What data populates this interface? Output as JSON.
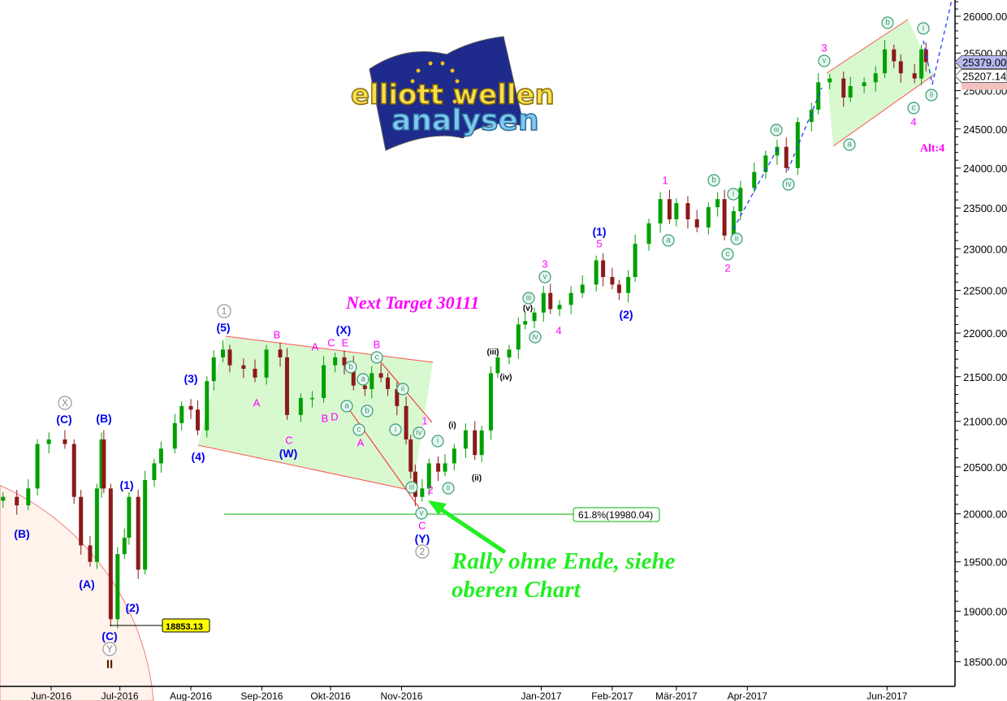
{
  "chart_data": {
    "type": "candlestick",
    "y_scale": "log",
    "ylim": [
      18300,
      26400
    ],
    "grid": false,
    "y_ticks": [
      "26000.00",
      "25500.00",
      "25000.00",
      "24500.00",
      "24000.00",
      "23500.00",
      "23000.00",
      "22500.00",
      "22000.00",
      "21500.00",
      "21000.00",
      "20500.00",
      "20000.00",
      "19500.00",
      "19000.00",
      "18500.00"
    ],
    "x_ticks": [
      {
        "label": "Jun-2016",
        "date": "2016-06-01"
      },
      {
        "label": "Jul-2016",
        "date": "2016-07-01"
      },
      {
        "label": "Aug-2016",
        "date": "2016-08-01"
      },
      {
        "label": "Sep-2016",
        "date": "2016-09-01"
      },
      {
        "label": "Okt-2016",
        "date": "2016-10-01"
      },
      {
        "label": "Nov-2016",
        "date": "2016-11-01"
      },
      {
        "label": "Jan-2017",
        "date": "2017-01-01"
      },
      {
        "label": "Feb-2017",
        "date": "2017-02-01"
      },
      {
        "label": "Mär-2017",
        "date": "2017-03-01"
      },
      {
        "label": "Apr-2017",
        "date": "2017-04-01"
      },
      {
        "label": "Jun-2017",
        "date": "2017-06-01"
      }
    ],
    "series": [
      {
        "date": "2016-05-11",
        "close": 20180
      },
      {
        "date": "2016-05-17",
        "close": 20090
      },
      {
        "date": "2016-05-22",
        "close": 20270
      },
      {
        "date": "2016-05-26",
        "close": 20750
      },
      {
        "date": "2016-05-31",
        "close": 20800
      },
      {
        "date": "2016-06-07",
        "close": 20750
      },
      {
        "date": "2016-06-11",
        "close": 20180
      },
      {
        "date": "2016-06-14",
        "close": 19670
      },
      {
        "date": "2016-06-18",
        "close": 19500
      },
      {
        "date": "2016-06-21",
        "close": 20270
      },
      {
        "date": "2016-06-23",
        "close": 20800
      },
      {
        "date": "2016-06-24",
        "close": 20270
      },
      {
        "date": "2016-06-27",
        "close": 18920
      },
      {
        "date": "2016-06-30",
        "close": 19580
      },
      {
        "date": "2016-07-03",
        "close": 19750
      },
      {
        "date": "2016-07-05",
        "close": 20180
      },
      {
        "date": "2016-07-09",
        "close": 19420
      },
      {
        "date": "2016-07-12",
        "close": 20360
      },
      {
        "date": "2016-07-16",
        "close": 20540
      },
      {
        "date": "2016-07-19",
        "close": 20700
      },
      {
        "date": "2016-07-25",
        "close": 20980
      },
      {
        "date": "2016-07-28",
        "close": 21170
      },
      {
        "date": "2016-08-01",
        "close": 21130
      },
      {
        "date": "2016-08-04",
        "close": 20900
      },
      {
        "date": "2016-08-08",
        "close": 21450
      },
      {
        "date": "2016-08-11",
        "close": 21720
      },
      {
        "date": "2016-08-15",
        "close": 21810
      },
      {
        "date": "2016-08-18",
        "close": 21630
      },
      {
        "date": "2016-08-24",
        "close": 21590
      },
      {
        "date": "2016-08-29",
        "close": 21490
      },
      {
        "date": "2016-09-03",
        "close": 21810
      },
      {
        "date": "2016-09-09",
        "close": 21720
      },
      {
        "date": "2016-09-12",
        "close": 21070
      },
      {
        "date": "2016-09-18",
        "close": 21260
      },
      {
        "date": "2016-09-23",
        "close": 21260
      },
      {
        "date": "2016-09-28",
        "close": 21630
      },
      {
        "date": "2016-10-03",
        "close": 21720
      },
      {
        "date": "2016-10-07",
        "close": 21630
      },
      {
        "date": "2016-10-11",
        "close": 21400
      },
      {
        "date": "2016-10-16",
        "close": 21360
      },
      {
        "date": "2016-10-19",
        "close": 21540
      },
      {
        "date": "2016-10-23",
        "close": 21490
      },
      {
        "date": "2016-10-26",
        "close": 21360
      },
      {
        "date": "2016-10-30",
        "close": 21170
      },
      {
        "date": "2016-11-03",
        "close": 20800
      },
      {
        "date": "2016-11-05",
        "close": 20450
      },
      {
        "date": "2016-11-07",
        "close": 20180
      },
      {
        "date": "2016-11-10",
        "close": 20270
      },
      {
        "date": "2016-11-13",
        "close": 20540
      },
      {
        "date": "2016-11-17",
        "close": 20450
      },
      {
        "date": "2016-11-20",
        "close": 20540
      },
      {
        "date": "2016-11-24",
        "close": 20700
      },
      {
        "date": "2016-11-29",
        "close": 20900
      },
      {
        "date": "2016-12-03",
        "close": 20630
      },
      {
        "date": "2016-12-06",
        "close": 20900
      },
      {
        "date": "2016-12-10",
        "close": 21540
      },
      {
        "date": "2016-12-13",
        "close": 21720
      },
      {
        "date": "2016-12-18",
        "close": 21810
      },
      {
        "date": "2016-12-22",
        "close": 22100
      },
      {
        "date": "2016-12-25",
        "close": 22140
      },
      {
        "date": "2016-12-29",
        "close": 22240
      },
      {
        "date": "2017-01-02",
        "close": 22470
      },
      {
        "date": "2017-01-05",
        "close": 22280
      },
      {
        "date": "2017-01-09",
        "close": 22330
      },
      {
        "date": "2017-01-14",
        "close": 22470
      },
      {
        "date": "2017-01-19",
        "close": 22570
      },
      {
        "date": "2017-01-25",
        "close": 22860
      },
      {
        "date": "2017-01-28",
        "close": 22660
      },
      {
        "date": "2017-02-01",
        "close": 22570
      },
      {
        "date": "2017-02-04",
        "close": 22470
      },
      {
        "date": "2017-02-08",
        "close": 22660
      },
      {
        "date": "2017-02-11",
        "close": 23060
      },
      {
        "date": "2017-02-17",
        "close": 23310
      },
      {
        "date": "2017-02-22",
        "close": 23610
      },
      {
        "date": "2017-02-26",
        "close": 23360
      },
      {
        "date": "2017-03-01",
        "close": 23560
      },
      {
        "date": "2017-03-06",
        "close": 23360
      },
      {
        "date": "2017-03-10",
        "close": 23260
      },
      {
        "date": "2017-03-15",
        "close": 23510
      },
      {
        "date": "2017-03-19",
        "close": 23610
      },
      {
        "date": "2017-03-22",
        "close": 23160
      },
      {
        "date": "2017-03-26",
        "close": 23460
      },
      {
        "date": "2017-03-29",
        "close": 23750
      },
      {
        "date": "2017-04-04",
        "close": 23950
      },
      {
        "date": "2017-04-09",
        "close": 24160
      },
      {
        "date": "2017-04-14",
        "close": 24270
      },
      {
        "date": "2017-04-18",
        "close": 24000
      },
      {
        "date": "2017-04-23",
        "close": 24590
      },
      {
        "date": "2017-04-29",
        "close": 24750
      },
      {
        "date": "2017-05-02",
        "close": 25110
      },
      {
        "date": "2017-05-07",
        "close": 25160
      },
      {
        "date": "2017-05-13",
        "close": 24910
      },
      {
        "date": "2017-05-16",
        "close": 25060
      },
      {
        "date": "2017-05-22",
        "close": 25110
      },
      {
        "date": "2017-05-27",
        "close": 25230
      },
      {
        "date": "2017-05-31",
        "close": 25550
      },
      {
        "date": "2017-06-04",
        "close": 25390
      },
      {
        "date": "2017-06-07",
        "close": 25230
      },
      {
        "date": "2017-06-13",
        "close": 25160
      },
      {
        "date": "2017-06-16",
        "close": 25550
      },
      {
        "date": "2017-06-18",
        "close": 25379
      }
    ],
    "colors": {
      "up": "#00a000",
      "down": "#8b1a1a",
      "channel_fill": "#d8f8d0",
      "channel_line": "#ff5050",
      "fib_line": "#00b000",
      "forecast_line": "#2040ff",
      "wave_blue": "#0000ee",
      "wave_magenta": "#ff00ff",
      "wave_circle": "#3c9a78"
    },
    "price_tags": {
      "last": "25379.00",
      "current": "25207.14"
    },
    "fib_label": "61.8%(19980.04)",
    "low_label": "18853.13",
    "target_text": "Next Target 30111",
    "comment_line1": "Rally ohne Ende, siehe",
    "comment_line2": "oberen Chart",
    "logo_text": [
      "elliott wellen",
      "analysen"
    ],
    "wave_labels": [
      {
        "text": "(B)",
        "style": "blue"
      },
      {
        "text": "(C)",
        "style": "blue"
      },
      {
        "text": "X",
        "style": "circle-gray"
      },
      {
        "text": "(B)",
        "style": "blue"
      },
      {
        "text": "(A)",
        "style": "blue"
      },
      {
        "text": "(1)",
        "style": "blue"
      },
      {
        "text": "(2)",
        "style": "blue"
      },
      {
        "text": "(C)",
        "style": "blue"
      },
      {
        "text": "Y",
        "style": "circle-gray"
      },
      {
        "text": "II",
        "style": "roman"
      },
      {
        "text": "(3)",
        "style": "blue"
      },
      {
        "text": "(4)",
        "style": "blue"
      },
      {
        "text": "(5)",
        "style": "blue"
      },
      {
        "text": "1",
        "style": "circle-gray"
      },
      {
        "text": "B",
        "style": "magenta"
      },
      {
        "text": "A",
        "style": "magenta"
      },
      {
        "text": "C",
        "style": "magenta"
      },
      {
        "text": "(W)",
        "style": "blue"
      },
      {
        "text": "A",
        "style": "magenta"
      },
      {
        "text": "C",
        "style": "magenta"
      },
      {
        "text": "(X)",
        "style": "blue"
      },
      {
        "text": "E",
        "style": "magenta"
      },
      {
        "text": "B",
        "style": "magenta"
      },
      {
        "text": "D",
        "style": "magenta"
      },
      {
        "text": "B",
        "style": "magenta"
      },
      {
        "text": "c",
        "style": "circle-green"
      },
      {
        "text": "b",
        "style": "circle-green"
      },
      {
        "text": "a",
        "style": "circle-green"
      },
      {
        "text": "a",
        "style": "circle-green"
      },
      {
        "text": "b",
        "style": "circle-green"
      },
      {
        "text": "c",
        "style": "circle-green"
      },
      {
        "text": "A",
        "style": "magenta"
      },
      {
        "text": "ii",
        "style": "circle-green"
      },
      {
        "text": "i",
        "style": "circle-green"
      },
      {
        "text": "iv",
        "style": "circle-green"
      },
      {
        "text": "1",
        "style": "magenta"
      },
      {
        "text": "i",
        "style": "circle-green"
      },
      {
        "text": "iii",
        "style": "circle-green"
      },
      {
        "text": "2",
        "style": "magenta"
      },
      {
        "text": "ii",
        "style": "circle-green"
      },
      {
        "text": "v",
        "style": "circle-green"
      },
      {
        "text": "C",
        "style": "magenta"
      },
      {
        "text": "(Y)",
        "style": "blue"
      },
      {
        "text": "2",
        "style": "circle-gray"
      },
      {
        "text": "(i)",
        "style": "black"
      },
      {
        "text": "(ii)",
        "style": "black"
      },
      {
        "text": "(iii)",
        "style": "black"
      },
      {
        "text": "(iv)",
        "style": "black"
      },
      {
        "text": "(v)",
        "style": "black"
      },
      {
        "text": "iii",
        "style": "circle-green"
      },
      {
        "text": "iv",
        "style": "circle-green"
      },
      {
        "text": "3",
        "style": "magenta"
      },
      {
        "text": "v",
        "style": "circle-green"
      },
      {
        "text": "4",
        "style": "magenta"
      },
      {
        "text": "(1)",
        "style": "blue"
      },
      {
        "text": "5",
        "style": "magenta"
      },
      {
        "text": "(2)",
        "style": "blue"
      },
      {
        "text": "1",
        "style": "magenta"
      },
      {
        "text": "a",
        "style": "circle-green"
      },
      {
        "text": "b",
        "style": "circle-green"
      },
      {
        "text": "i",
        "style": "circle-green"
      },
      {
        "text": "ii",
        "style": "circle-green"
      },
      {
        "text": "c",
        "style": "circle-green"
      },
      {
        "text": "2",
        "style": "magenta"
      },
      {
        "text": "iii",
        "style": "circle-green"
      },
      {
        "text": "iv",
        "style": "circle-green"
      },
      {
        "text": "3",
        "style": "magenta"
      },
      {
        "text": "v",
        "style": "circle-green"
      },
      {
        "text": "b",
        "style": "circle-green"
      },
      {
        "text": "a",
        "style": "circle-green"
      },
      {
        "text": "c",
        "style": "circle-green"
      },
      {
        "text": "4",
        "style": "magenta"
      },
      {
        "text": "i",
        "style": "circle-green"
      },
      {
        "text": "ii",
        "style": "circle-green"
      },
      {
        "text": "Alt:4",
        "style": "alt"
      }
    ]
  }
}
